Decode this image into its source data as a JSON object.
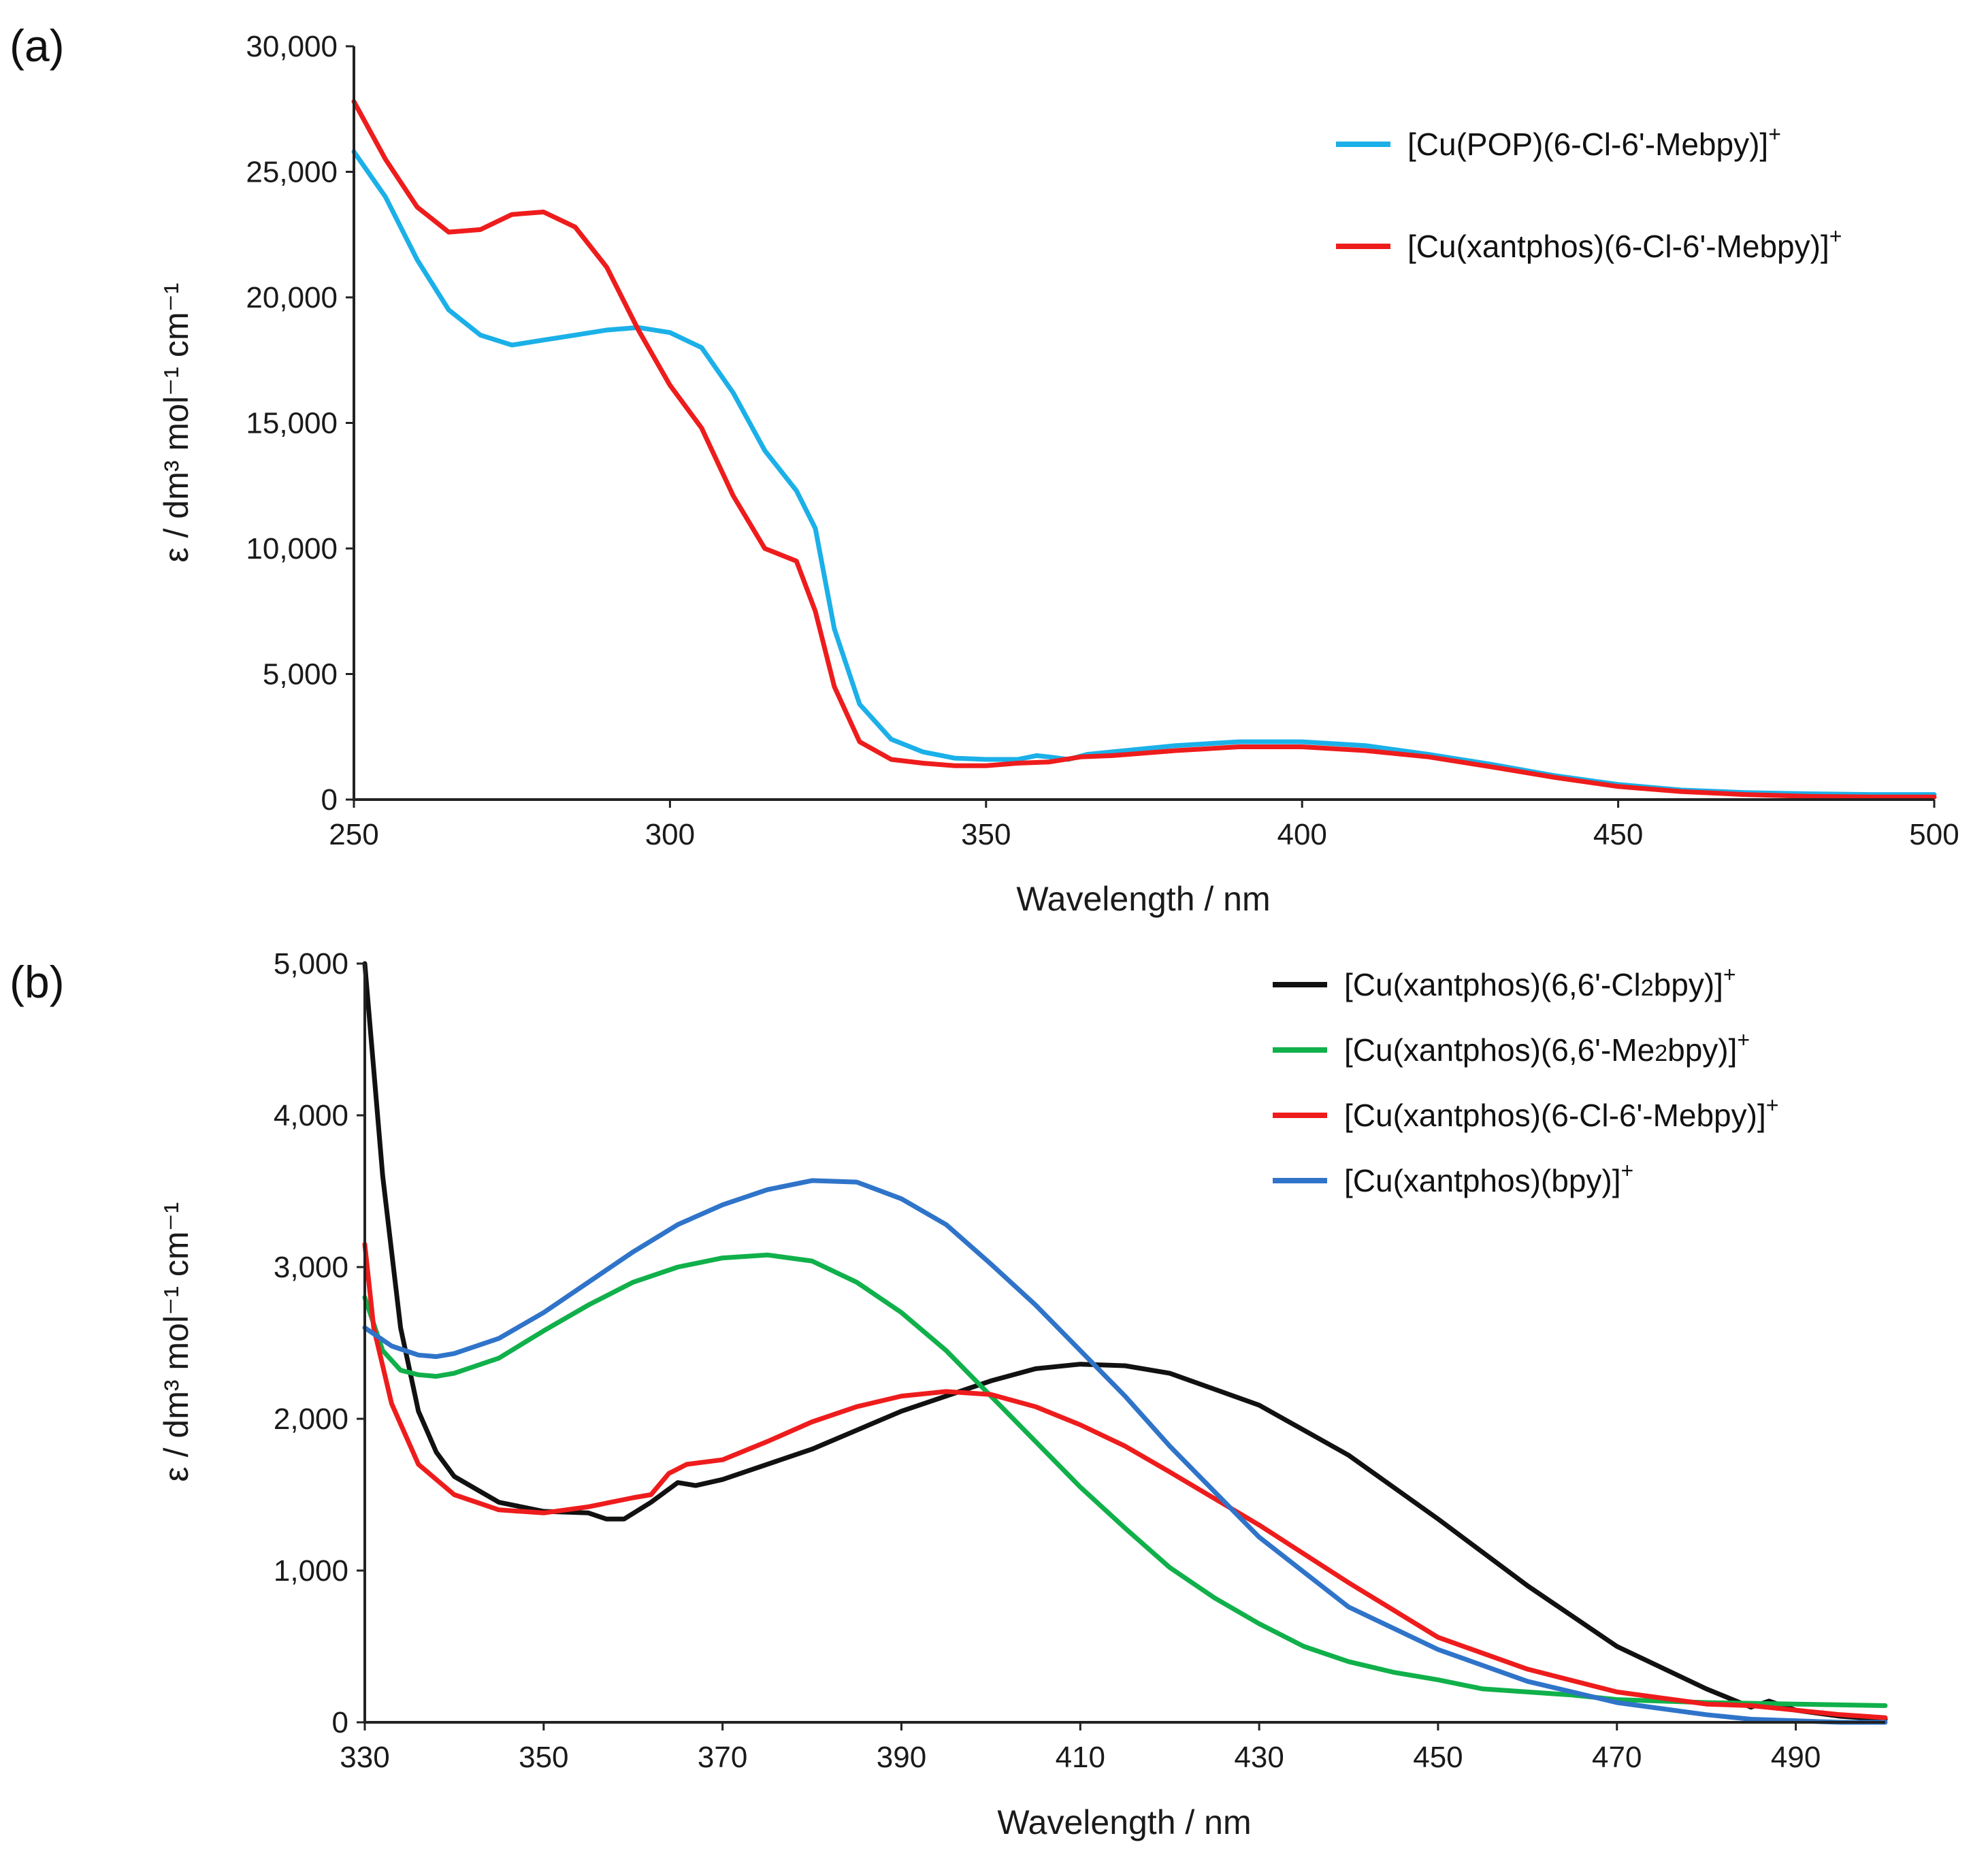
{
  "chart_data": [
    {
      "panel": "(a)",
      "type": "line",
      "xlabel": "Wavelength / nm",
      "ylabel": "ε / dm³ mol⁻¹ cm⁻¹",
      "xlim": [
        250,
        500
      ],
      "ylim": [
        0,
        30000
      ],
      "xticks": [
        250,
        300,
        350,
        400,
        450,
        500
      ],
      "xtick_labels": [
        "250",
        "300",
        "350",
        "400",
        "450",
        "500"
      ],
      "yticks": [
        0,
        5000,
        10000,
        15000,
        20000,
        25000,
        30000
      ],
      "ytick_labels": [
        "0",
        "5,000",
        "10,000",
        "15,000",
        "20,000",
        "25,000",
        "30,000"
      ],
      "grid": false,
      "legend_position": "top-right",
      "series": [
        {
          "name": "[Cu(POP)(6-Cl-6'-Mebpy)]+",
          "label_main": "[Cu(POP)(6-Cl-6'-Mebpy)]",
          "label_sup": "+",
          "color": "#1bb0e8",
          "x": [
            250,
            255,
            260,
            265,
            270,
            275,
            280,
            285,
            290,
            295,
            300,
            305,
            310,
            315,
            320,
            323,
            326,
            330,
            335,
            340,
            345,
            350,
            355,
            358,
            360,
            363,
            366,
            370,
            380,
            390,
            400,
            410,
            420,
            430,
            440,
            450,
            460,
            470,
            480,
            490,
            500
          ],
          "y": [
            25800,
            24000,
            21500,
            19500,
            18500,
            18100,
            18300,
            18500,
            18700,
            18800,
            18600,
            18000,
            16200,
            13900,
            12300,
            10800,
            6800,
            3800,
            2400,
            1900,
            1650,
            1600,
            1600,
            1750,
            1700,
            1600,
            1800,
            1900,
            2150,
            2300,
            2300,
            2150,
            1800,
            1400,
            950,
            600,
            380,
            280,
            230,
            200,
            200
          ]
        },
        {
          "name": "[Cu(xantphos)(6-Cl-6'-Mebpy)]+",
          "label_main": "[Cu(xantphos)(6-Cl-6'-Mebpy)]",
          "label_sup": "+",
          "color": "#ee1c1c",
          "x": [
            250,
            255,
            260,
            265,
            270,
            275,
            280,
            285,
            290,
            295,
            300,
            305,
            310,
            315,
            320,
            323,
            326,
            330,
            335,
            340,
            345,
            350,
            355,
            360,
            365,
            370,
            380,
            390,
            400,
            410,
            420,
            430,
            440,
            450,
            460,
            470,
            480,
            490,
            500
          ],
          "y": [
            27800,
            25500,
            23600,
            22600,
            22700,
            23300,
            23400,
            22800,
            21200,
            18700,
            16500,
            14800,
            12100,
            10000,
            9500,
            7500,
            4500,
            2300,
            1600,
            1450,
            1350,
            1350,
            1450,
            1500,
            1700,
            1750,
            1950,
            2100,
            2100,
            1950,
            1700,
            1300,
            880,
            520,
            320,
            200,
            130,
            100,
            100
          ]
        }
      ]
    },
    {
      "panel": "(b)",
      "type": "line",
      "xlabel": "Wavelength / nm",
      "ylabel": "ε / dm³ mol⁻¹ cm⁻¹",
      "xlim": [
        330,
        500
      ],
      "ylim": [
        0,
        5000
      ],
      "xticks": [
        330,
        350,
        370,
        390,
        410,
        430,
        450,
        470,
        490
      ],
      "xtick_labels": [
        "330",
        "350",
        "370",
        "390",
        "410",
        "430",
        "450",
        "470",
        "490"
      ],
      "yticks": [
        0,
        1000,
        2000,
        3000,
        4000,
        5000
      ],
      "ytick_labels": [
        "0",
        "1,000",
        "2,000",
        "3,000",
        "4,000",
        "5,000"
      ],
      "grid": false,
      "legend_position": "top-right",
      "series": [
        {
          "name": "[Cu(xantphos)(6,6'-Cl2bpy)]+",
          "label_main": "[Cu(xantphos)(6,6'-Cl",
          "label_sub": "2",
          "label_after": "bpy)]",
          "label_sup": "+",
          "color": "#111111",
          "x": [
            330,
            332,
            334,
            336,
            338,
            340,
            345,
            350,
            355,
            357,
            359,
            362,
            365,
            367,
            370,
            380,
            390,
            400,
            405,
            410,
            415,
            420,
            430,
            440,
            450,
            460,
            470,
            480,
            485,
            487,
            490,
            495,
            500
          ],
          "y": [
            5000,
            3600,
            2600,
            2050,
            1780,
            1620,
            1450,
            1390,
            1380,
            1340,
            1340,
            1450,
            1580,
            1560,
            1600,
            1800,
            2050,
            2250,
            2330,
            2360,
            2350,
            2300,
            2090,
            1760,
            1340,
            900,
            500,
            220,
            100,
            140,
            80,
            40,
            20
          ]
        },
        {
          "name": "[Cu(xantphos)(6,6'-Me2bpy)]+",
          "label_main": "[Cu(xantphos)(6,6'-Me",
          "label_sub": "2",
          "label_after": "bpy)]",
          "label_sup": "+",
          "color": "#10b04a",
          "x": [
            330,
            332,
            334,
            336,
            338,
            340,
            345,
            350,
            355,
            360,
            365,
            370,
            375,
            380,
            385,
            390,
            395,
            400,
            405,
            410,
            415,
            420,
            425,
            430,
            435,
            440,
            445,
            450,
            455,
            460,
            465,
            470,
            480,
            490,
            500
          ],
          "y": [
            2800,
            2450,
            2320,
            2290,
            2280,
            2300,
            2400,
            2580,
            2750,
            2900,
            3000,
            3060,
            3080,
            3040,
            2900,
            2700,
            2450,
            2150,
            1850,
            1550,
            1280,
            1020,
            820,
            650,
            500,
            400,
            330,
            280,
            220,
            200,
            180,
            150,
            130,
            120,
            110
          ]
        },
        {
          "name": "[Cu(xantphos)(6-Cl-6'-Mebpy)]+",
          "label_main": "[Cu(xantphos)(6-Cl-6'-Mebpy)]",
          "label_sup": "+",
          "color": "#ee1c1c",
          "x": [
            330,
            331,
            333,
            336,
            340,
            345,
            350,
            355,
            360,
            362,
            364,
            366,
            370,
            375,
            380,
            385,
            390,
            395,
            400,
            405,
            410,
            415,
            420,
            430,
            440,
            450,
            460,
            470,
            480,
            485,
            490,
            495,
            500
          ],
          "y": [
            3150,
            2600,
            2100,
            1700,
            1500,
            1400,
            1380,
            1420,
            1480,
            1500,
            1640,
            1700,
            1730,
            1850,
            1980,
            2080,
            2150,
            2180,
            2160,
            2080,
            1960,
            1820,
            1650,
            1300,
            920,
            560,
            350,
            200,
            120,
            110,
            80,
            50,
            30
          ]
        },
        {
          "name": "[Cu(xantphos)(bpy)]+",
          "label_main": "[Cu(xantphos)(bpy)]",
          "label_sup": "+",
          "color": "#2f74c9",
          "x": [
            330,
            333,
            336,
            338,
            340,
            345,
            350,
            355,
            360,
            365,
            370,
            375,
            380,
            385,
            390,
            395,
            400,
            405,
            410,
            415,
            420,
            430,
            440,
            450,
            460,
            470,
            480,
            485,
            490,
            495,
            500
          ],
          "y": [
            2600,
            2480,
            2420,
            2410,
            2430,
            2530,
            2700,
            2900,
            3100,
            3280,
            3410,
            3510,
            3570,
            3560,
            3450,
            3280,
            3020,
            2750,
            2450,
            2150,
            1820,
            1220,
            760,
            480,
            270,
            130,
            50,
            20,
            10,
            0,
            0
          ]
        }
      ]
    }
  ]
}
